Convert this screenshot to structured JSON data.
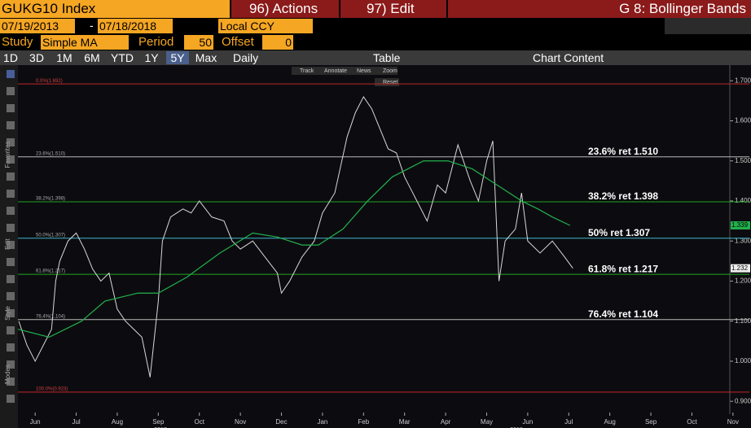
{
  "header": {
    "title": "GUKG10 Index",
    "actions": "96) Actions",
    "edit": "97) Edit",
    "chart_name": "G 8: Bollinger Bands"
  },
  "toolbar": {
    "start": "07/19/2013",
    "end": "07/18/2018",
    "currency": "Local CCY",
    "study_label": "Study",
    "study": "Simple MA",
    "period_label": "Period",
    "period": "50",
    "offset_label": "Offset",
    "offset": "0"
  },
  "ranges": [
    "1D",
    "3D",
    "1M",
    "6M",
    "YTD",
    "1Y",
    "5Y",
    "Max"
  ],
  "frequency": "Daily",
  "table": "Table",
  "chart_content": "Chart Content",
  "chart_tools": [
    "Track",
    "Annotate",
    "News",
    "Zoom"
  ],
  "reset": "Reset",
  "side_labels": [
    "Favorites",
    "Edit",
    "Style",
    "Modes"
  ],
  "chart_data": {
    "type": "line",
    "xlim": [
      -0.42,
      17.4
    ],
    "xticks": [
      {
        "value": 0,
        "label": "Jun"
      },
      {
        "value": 1,
        "label": "Jul"
      },
      {
        "value": 2,
        "label": "Aug"
      },
      {
        "value": 3,
        "label": "Sep"
      },
      {
        "value": 4,
        "label": "Oct"
      },
      {
        "value": 5,
        "label": "Nov"
      },
      {
        "value": 6,
        "label": "Dec"
      },
      {
        "value": 7,
        "label": "Jan"
      },
      {
        "value": 8,
        "label": "Feb"
      },
      {
        "value": 9,
        "label": "Mar"
      },
      {
        "value": 10,
        "label": "Apr"
      },
      {
        "value": 11,
        "label": "May"
      },
      {
        "value": 12,
        "label": "Jun"
      },
      {
        "value": 13,
        "label": "Jul"
      },
      {
        "value": 14,
        "label": "Aug"
      },
      {
        "value": 15,
        "label": "Sep"
      },
      {
        "value": 16,
        "label": "Oct"
      },
      {
        "value": 17,
        "label": "Nov"
      }
    ],
    "years": [
      "2017",
      "2018"
    ],
    "ylim": [
      0.876,
      1.735
    ],
    "yticks": [
      {
        "value": 0.9,
        "label": "0.900"
      },
      {
        "value": 1.0,
        "label": "1.000"
      },
      {
        "value": 1.1,
        "label": "1.100"
      },
      {
        "value": 1.2,
        "label": "1.200"
      },
      {
        "value": 1.3,
        "label": "1.300"
      },
      {
        "value": 1.4,
        "label": "1.400"
      },
      {
        "value": 1.5,
        "label": "1.500"
      },
      {
        "value": 1.6,
        "label": "1.600"
      },
      {
        "value": 1.7,
        "label": "1.700"
      }
    ],
    "levels": [
      {
        "tag": "0.0%(1.692)",
        "value": 1.692,
        "color": "#c0262a"
      },
      {
        "tag": "23.6%(1.510)",
        "value": 1.51,
        "color": "#b8b8b8",
        "label": "23.6% ret 1.510"
      },
      {
        "tag": "38.2%(1.398)",
        "value": 1.398,
        "color": "#1fa51f",
        "label": "38.2% ret 1.398"
      },
      {
        "tag": "50.0%(1.307)",
        "value": 1.307,
        "color": "#3fb6c9",
        "label": "50% ret 1.307"
      },
      {
        "tag": "61.8%(1.217)",
        "value": 1.217,
        "color": "#1fa51f",
        "label": "61.8% ret 1.217"
      },
      {
        "tag": "76.4%(1.104)",
        "value": 1.104,
        "color": "#b8b8b8",
        "label": "76.4% ret 1.104"
      },
      {
        "tag": "100.0%(0.923)",
        "value": 0.923,
        "color": "#c0262a"
      }
    ],
    "series": [
      {
        "color": "#d8d8d8",
        "last_label": "1.232",
        "x": [
          -0.4,
          -0.2,
          0,
          0.2,
          0.4,
          0.5,
          0.6,
          0.8,
          1.0,
          1.2,
          1.4,
          1.6,
          1.8,
          2.0,
          2.2,
          2.4,
          2.6,
          2.8,
          3.0,
          3.1,
          3.3,
          3.6,
          3.8,
          4.0,
          4.3,
          4.6,
          4.8,
          5.0,
          5.3,
          5.6,
          5.9,
          6.0,
          6.2,
          6.5,
          6.8,
          7.0,
          7.3,
          7.6,
          7.8,
          8.0,
          8.2,
          8.4,
          8.6,
          8.8,
          9.0,
          9.3,
          9.55,
          9.8,
          10.0,
          10.3,
          10.6,
          10.8,
          11.0,
          11.15,
          11.3,
          11.45,
          11.7,
          11.85,
          12.0,
          12.3,
          12.6,
          12.9,
          13.1
        ],
        "values": [
          1.1,
          1.04,
          1.0,
          1.04,
          1.08,
          1.2,
          1.25,
          1.3,
          1.32,
          1.28,
          1.23,
          1.2,
          1.22,
          1.13,
          1.1,
          1.08,
          1.06,
          0.96,
          1.15,
          1.3,
          1.36,
          1.38,
          1.37,
          1.4,
          1.36,
          1.35,
          1.3,
          1.28,
          1.3,
          1.26,
          1.22,
          1.17,
          1.2,
          1.26,
          1.3,
          1.37,
          1.42,
          1.56,
          1.62,
          1.66,
          1.63,
          1.58,
          1.53,
          1.52,
          1.46,
          1.4,
          1.35,
          1.44,
          1.42,
          1.54,
          1.45,
          1.4,
          1.5,
          1.55,
          1.2,
          1.3,
          1.33,
          1.42,
          1.3,
          1.27,
          1.3,
          1.26,
          1.232
        ]
      },
      {
        "color": "#22b14c",
        "last_label": "1.339",
        "x": [
          -0.42,
          0.34,
          1.13,
          1.7,
          2.5,
          3.0,
          3.7,
          4.5,
          5.3,
          5.9,
          6.5,
          6.9,
          7.5,
          8.1,
          8.7,
          9.46,
          10.06,
          10.65,
          11.25,
          11.85,
          12.25,
          12.6,
          13.03
        ],
        "values": [
          1.08,
          1.06,
          1.1,
          1.15,
          1.17,
          1.17,
          1.21,
          1.27,
          1.32,
          1.31,
          1.29,
          1.29,
          1.33,
          1.4,
          1.46,
          1.5,
          1.5,
          1.48,
          1.44,
          1.4,
          1.38,
          1.36,
          1.339
        ]
      }
    ]
  }
}
